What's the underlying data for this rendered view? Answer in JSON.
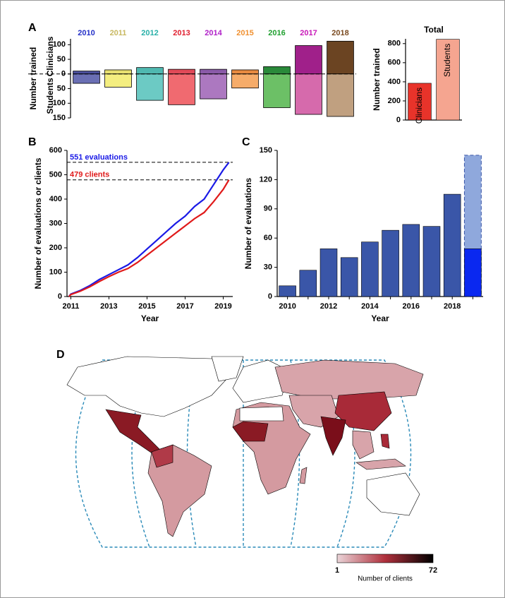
{
  "chart_data": [
    {
      "type": "diverging_bar",
      "label": "A",
      "ylabel": "Number trained",
      "categories": [
        "2010",
        "2011",
        "2012",
        "2013",
        "2014",
        "2015",
        "2016",
        "2017",
        "2018"
      ],
      "category_colors": [
        "#2430c8",
        "#c8b860",
        "#28b0a8",
        "#e02030",
        "#b020c8",
        "#f09030",
        "#20a030",
        "#c818b8",
        "#7a4a20"
      ],
      "series": [
        {
          "name": "Clinicians",
          "colors": [
            "#4a4f9c",
            "#e8e070",
            "#4fb8b0",
            "#e04a58",
            "#8a5aa8",
            "#e88a40",
            "#2a8a3a",
            "#a0208a",
            "#6b4422"
          ],
          "values": [
            10,
            14,
            22,
            16,
            16,
            14,
            25,
            97,
            112
          ]
        },
        {
          "name": "Students",
          "colors": [
            "#6a6fb4",
            "#f4ee80",
            "#6ccac4",
            "#f06a70",
            "#ac78c0",
            "#f6ac6a",
            "#6cc066",
            "#d66aac",
            "#c0a080"
          ],
          "values": [
            -32,
            -45,
            -90,
            -105,
            -85,
            -48,
            -115,
            -138,
            -145
          ]
        }
      ],
      "ylim": [
        -150,
        120
      ],
      "yticks": [
        {
          "value": -150,
          "label": "150"
        },
        {
          "value": -100,
          "label": "100"
        },
        {
          "value": -50,
          "label": "50"
        },
        0,
        50,
        100
      ],
      "zero_line": "dashed"
    },
    {
      "type": "bar",
      "title": "Total",
      "ylabel": "Number trained",
      "categories": [
        "Clinicians",
        "Students"
      ],
      "values": [
        385,
        845
      ],
      "colors": [
        "#e8332a",
        "#f5a590"
      ],
      "ylim": [
        0,
        850
      ],
      "yticks": [
        0,
        200,
        400,
        600,
        800
      ],
      "labels_inside": true
    },
    {
      "type": "line",
      "label": "B",
      "xlabel": "Year",
      "ylabel": "Number of evaluations or clients",
      "x": [
        2010.9,
        2011,
        2011.5,
        2012,
        2012.5,
        2013,
        2013.5,
        2014,
        2014.5,
        2015,
        2015.5,
        2016,
        2016.5,
        2017,
        2017.5,
        2018,
        2018.5,
        2019,
        2019.3
      ],
      "series": [
        {
          "color": "#1a1ae6",
          "values": [
            0,
            10,
            25,
            45,
            70,
            90,
            110,
            130,
            160,
            195,
            230,
            265,
            300,
            330,
            370,
            400,
            460,
            520,
            551
          ]
        },
        {
          "color": "#e01a1a",
          "values": [
            0,
            8,
            22,
            40,
            62,
            82,
            100,
            115,
            140,
            170,
            200,
            230,
            260,
            290,
            320,
            345,
            390,
            440,
            479
          ]
        }
      ],
      "annotations": [
        {
          "text": "551 evaluations",
          "value": 551,
          "color": "#1a1ae6"
        },
        {
          "text": "479 clients",
          "value": 479,
          "color": "#e01a1a"
        }
      ],
      "xlim": [
        2010.8,
        2019.5
      ],
      "xticks": [
        2011,
        2013,
        2015,
        2017,
        2019
      ],
      "ylim": [
        0,
        600
      ],
      "yticks": [
        0,
        100,
        200,
        300,
        400,
        500,
        600
      ]
    },
    {
      "type": "bar",
      "label": "C",
      "xlabel": "Year",
      "ylabel": "Number of evaluations",
      "categories": [
        "2010",
        null,
        "2012",
        null,
        "2014",
        null,
        "2016",
        null,
        "2018",
        null
      ],
      "values": [
        11,
        27,
        49,
        40,
        56,
        68,
        74,
        72,
        105,
        49
      ],
      "colors": [
        "#3a56a8",
        "#3a56a8",
        "#3a56a8",
        "#3a56a8",
        "#3a56a8",
        "#3a56a8",
        "#3a56a8",
        "#3a56a8",
        "#3a56a8",
        "#0a28f0"
      ],
      "projection": {
        "values": [
          null,
          null,
          null,
          null,
          null,
          null,
          null,
          null,
          null,
          145
        ],
        "color": "#8fa8dc",
        "line": "dashed"
      },
      "ylim": [
        0,
        150
      ],
      "yticks": [
        0,
        30,
        60,
        90,
        120,
        150
      ]
    }
  ],
  "map": {
    "label": "D",
    "colorbar": {
      "min": 1,
      "max": 72,
      "label": "Number of clients",
      "colors": [
        "#ead4d8",
        "#b0303c",
        "#000000"
      ]
    }
  }
}
